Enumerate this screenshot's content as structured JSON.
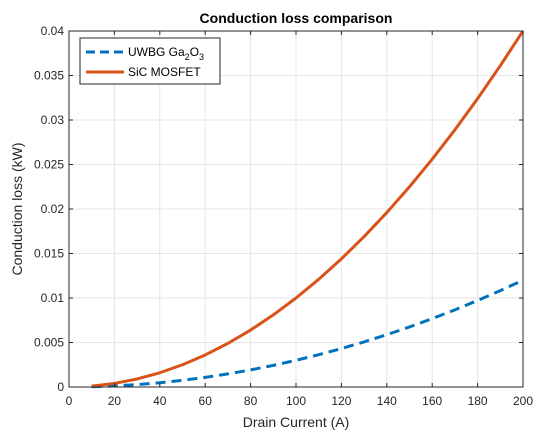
{
  "chart_data": {
    "type": "line",
    "title": "Conduction loss comparison",
    "xlabel": "Drain Current (A)",
    "ylabel": "Conduction loss (kW)",
    "xlim": [
      0,
      200
    ],
    "ylim": [
      0,
      0.04
    ],
    "x_ticks": [
      0,
      20,
      40,
      60,
      80,
      100,
      120,
      140,
      160,
      180,
      200
    ],
    "x_tick_labels": [
      "0",
      "20",
      "40",
      "60",
      "80",
      "100",
      "120",
      "140",
      "160",
      "180",
      "200"
    ],
    "y_ticks": [
      0,
      0.005,
      0.01,
      0.015,
      0.02,
      0.025,
      0.03,
      0.035,
      0.04
    ],
    "y_tick_labels": [
      "0",
      "0.005",
      "0.01",
      "0.015",
      "0.02",
      "0.025",
      "0.03",
      "0.035",
      "0.04"
    ],
    "grid": true,
    "legend_position": "top-left",
    "x": [
      10,
      20,
      30,
      40,
      50,
      60,
      70,
      80,
      90,
      100,
      110,
      120,
      130,
      140,
      150,
      160,
      170,
      180,
      190,
      200
    ],
    "series": [
      {
        "name": "UWBG Ga2O3",
        "legend_base": "UWBG Ga",
        "legend_sub1": "2",
        "legend_mid": "O",
        "legend_sub2": "3",
        "color": "#0072BD",
        "style": "dashed",
        "values": [
          3e-05,
          0.00012,
          0.00027,
          0.00048,
          0.00075,
          0.00108,
          0.00147,
          0.00192,
          0.00243,
          0.003,
          0.00363,
          0.00432,
          0.00507,
          0.00588,
          0.00675,
          0.00768,
          0.00867,
          0.00972,
          0.01083,
          0.012
        ]
      },
      {
        "name": "SiC MOSFET",
        "color": "#D95319",
        "style": "solid",
        "values": [
          0.0001,
          0.0004,
          0.0009,
          0.0016,
          0.0025,
          0.0036,
          0.0049,
          0.0064,
          0.0081,
          0.01,
          0.0121,
          0.0144,
          0.0169,
          0.0196,
          0.0225,
          0.0256,
          0.0289,
          0.0324,
          0.0361,
          0.04
        ]
      }
    ]
  }
}
